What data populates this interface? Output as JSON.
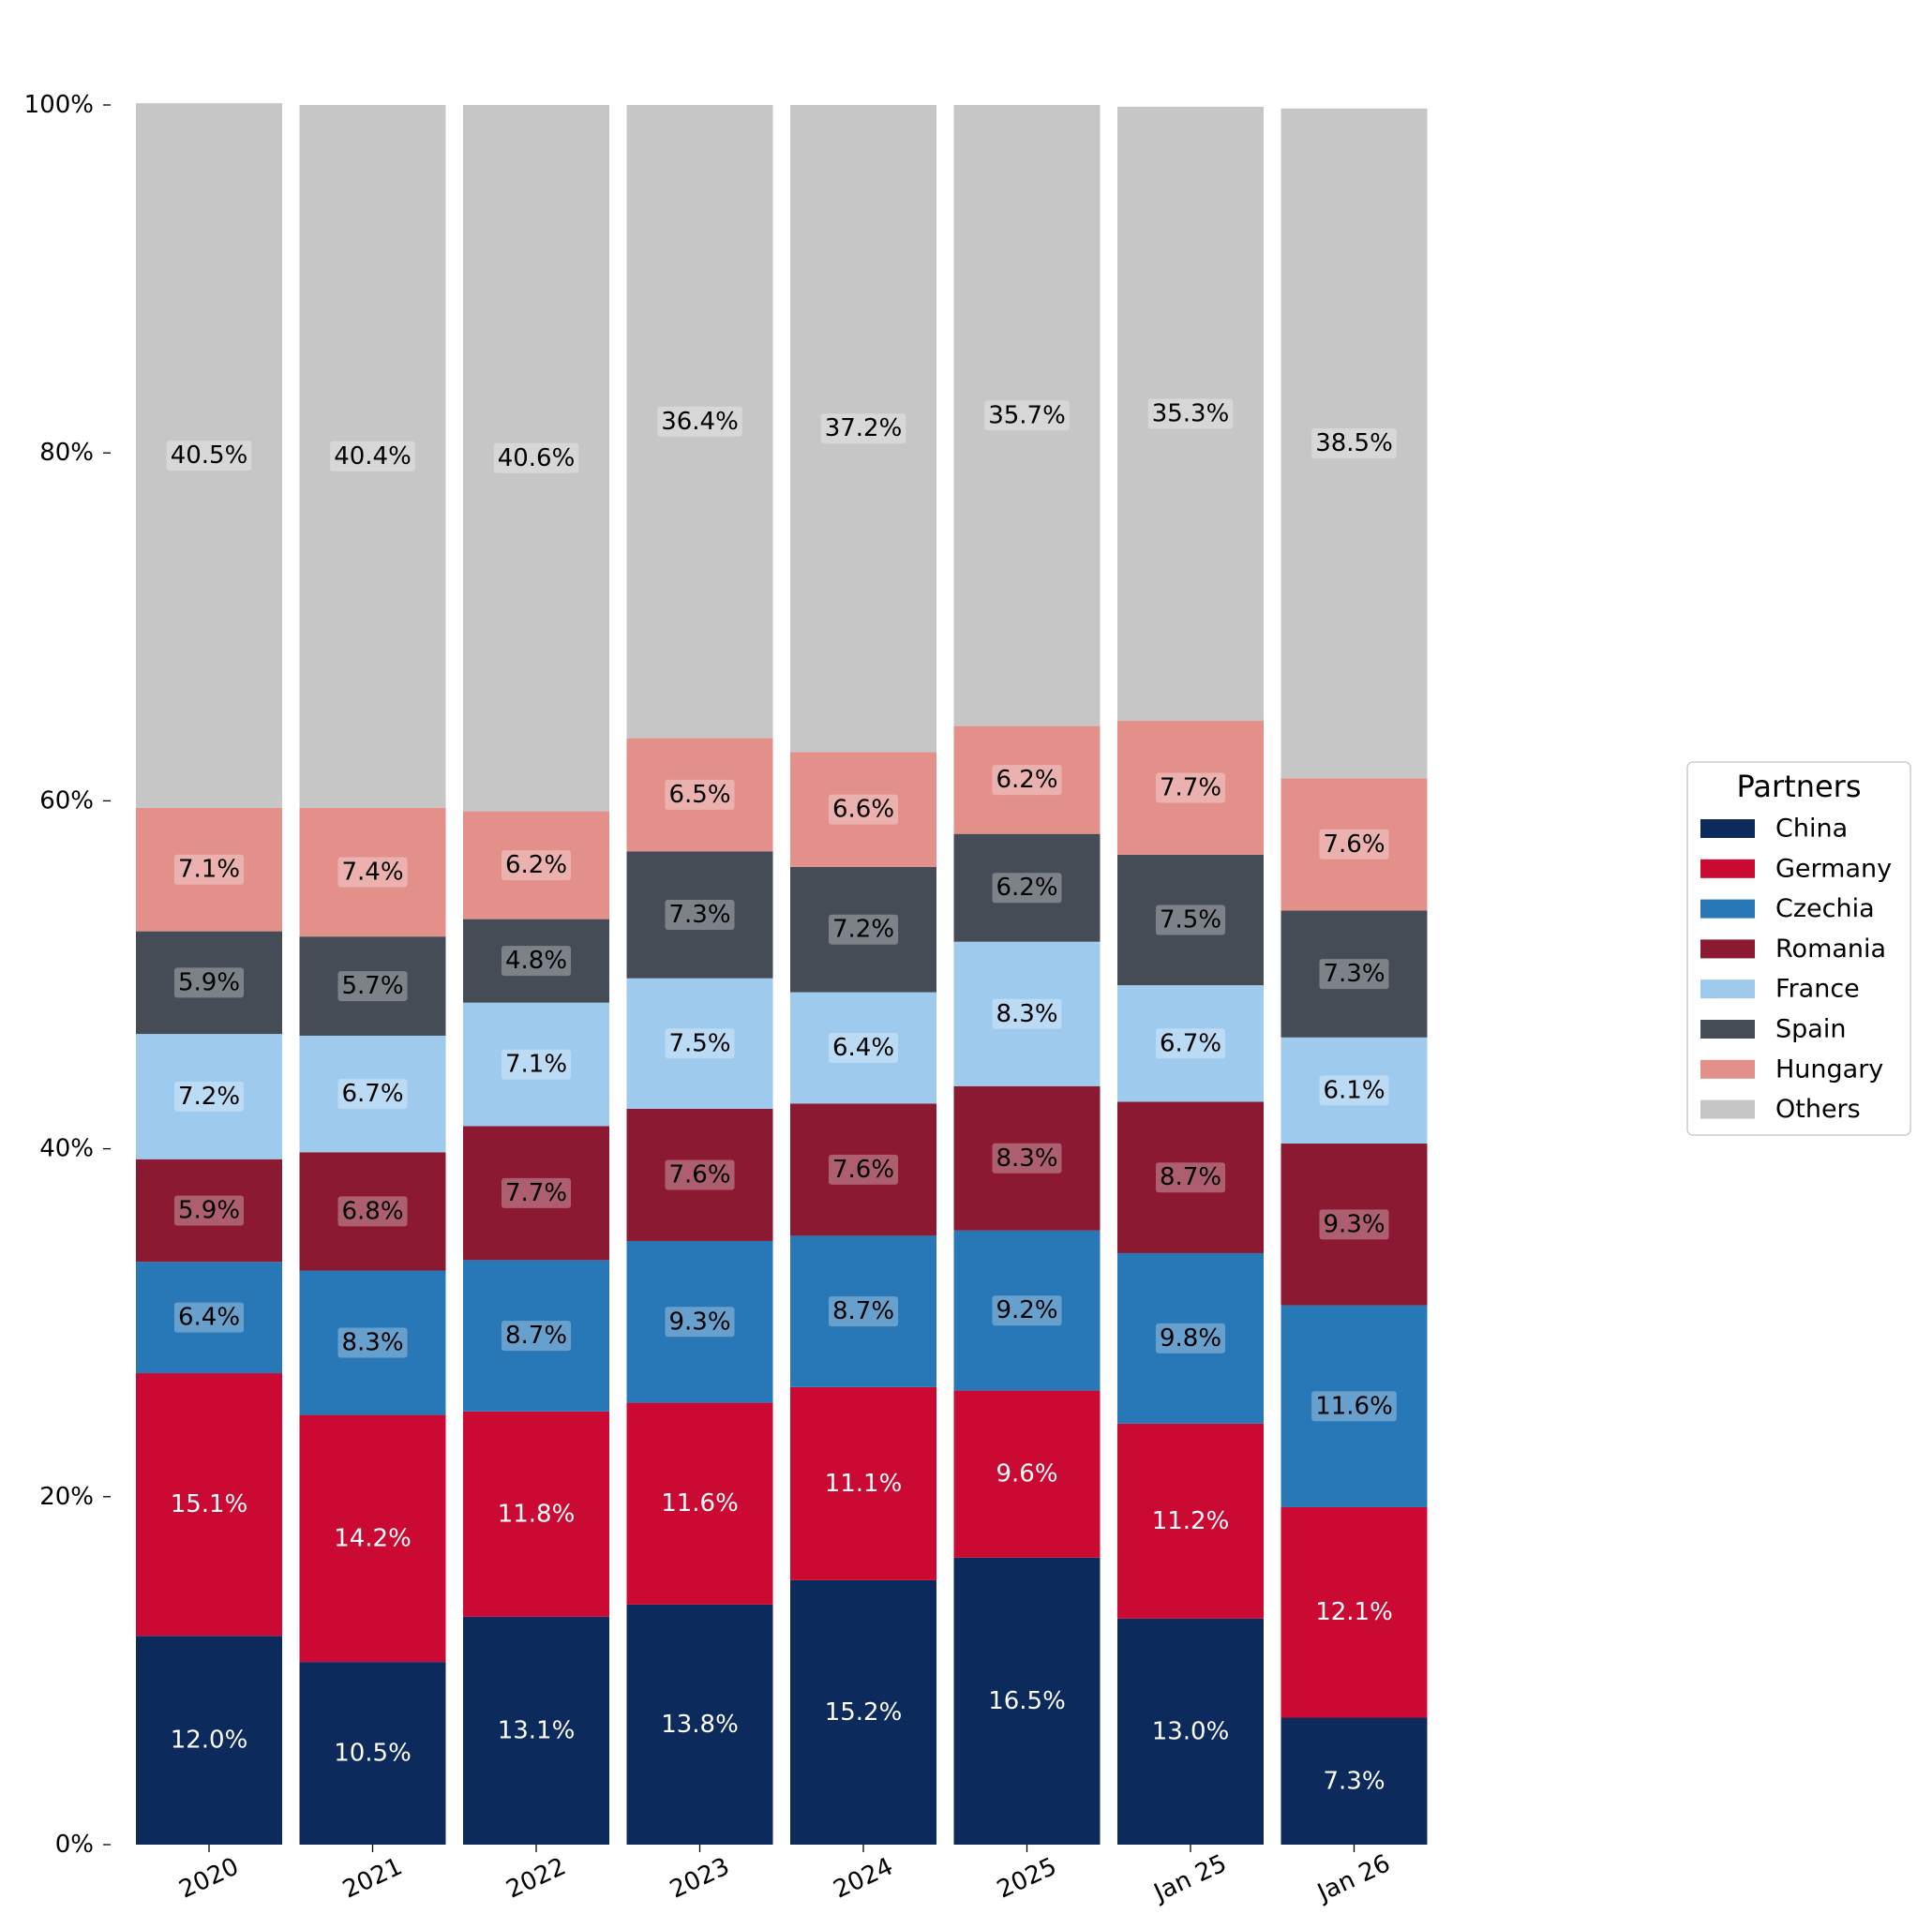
{
  "chart_data": {
    "type": "bar",
    "stacked": true,
    "categories": [
      "2020",
      "2021",
      "2022",
      "2023",
      "2024",
      "2025",
      "Jan 25",
      "Jan 26"
    ],
    "ylim": [
      0,
      100
    ],
    "yticks": [
      0,
      20,
      40,
      60,
      80,
      100
    ],
    "ytick_labels": [
      "0%",
      "20%",
      "40%",
      "60%",
      "80%",
      "100%"
    ],
    "grid": false,
    "legend": {
      "title": "Partners",
      "placement": "right"
    },
    "series": [
      {
        "name": "China",
        "color": "#0c2a5b",
        "label_color": "#ffffff",
        "values": [
          12.0,
          10.5,
          13.1,
          13.8,
          15.2,
          16.5,
          13.0,
          7.3
        ],
        "labels": [
          "12.0%",
          "10.5%",
          "13.1%",
          "13.8%",
          "15.2%",
          "16.5%",
          "13.0%",
          "7.3%"
        ]
      },
      {
        "name": "Germany",
        "color": "#cb0a34",
        "label_color": "#ffffff",
        "values": [
          15.1,
          14.2,
          11.8,
          11.6,
          11.1,
          9.6,
          11.2,
          12.1
        ],
        "labels": [
          "15.1%",
          "14.2%",
          "11.8%",
          "11.6%",
          "11.1%",
          "9.6%",
          "11.2%",
          "12.1%"
        ]
      },
      {
        "name": "Czechia",
        "color": "#2878b8",
        "label_color": "#000000",
        "values": [
          6.4,
          8.3,
          8.7,
          9.3,
          8.7,
          9.2,
          9.8,
          11.6
        ],
        "labels": [
          "6.4%",
          "8.3%",
          "8.7%",
          "9.3%",
          "8.7%",
          "9.2%",
          "9.8%",
          "11.6%"
        ]
      },
      {
        "name": "Romania",
        "color": "#8a1931",
        "label_color": "#000000",
        "values": [
          5.9,
          6.8,
          7.7,
          7.6,
          7.6,
          8.3,
          8.7,
          9.3
        ],
        "labels": [
          "5.9%",
          "6.8%",
          "7.7%",
          "7.6%",
          "7.6%",
          "8.3%",
          "8.7%",
          "9.3%"
        ]
      },
      {
        "name": "France",
        "color": "#9ecaee",
        "label_color": "#000000",
        "values": [
          7.2,
          6.7,
          7.1,
          7.5,
          6.4,
          8.3,
          6.7,
          6.1
        ],
        "labels": [
          "7.2%",
          "6.7%",
          "7.1%",
          "7.5%",
          "6.4%",
          "8.3%",
          "6.7%",
          "6.1%"
        ]
      },
      {
        "name": "Spain",
        "color": "#454c56",
        "label_color": "#000000",
        "values": [
          5.9,
          5.7,
          4.8,
          7.3,
          7.2,
          6.2,
          7.5,
          7.3
        ],
        "labels": [
          "5.9%",
          "5.7%",
          "4.8%",
          "7.3%",
          "7.2%",
          "6.2%",
          "7.5%",
          "7.3%"
        ]
      },
      {
        "name": "Hungary",
        "color": "#e3908b",
        "label_color": "#000000",
        "values": [
          7.1,
          7.4,
          6.2,
          6.5,
          6.6,
          6.2,
          7.7,
          7.6
        ],
        "labels": [
          "7.1%",
          "7.4%",
          "6.2%",
          "6.5%",
          "6.6%",
          "6.2%",
          "7.7%",
          "7.6%"
        ]
      },
      {
        "name": "Others",
        "color": "#c6c6c6",
        "label_color": "#000000",
        "values": [
          40.5,
          40.4,
          40.6,
          36.4,
          37.2,
          35.7,
          35.3,
          38.5
        ],
        "labels": [
          "40.5%",
          "40.4%",
          "40.6%",
          "36.4%",
          "37.2%",
          "35.7%",
          "35.3%",
          "38.5%"
        ]
      }
    ]
  }
}
